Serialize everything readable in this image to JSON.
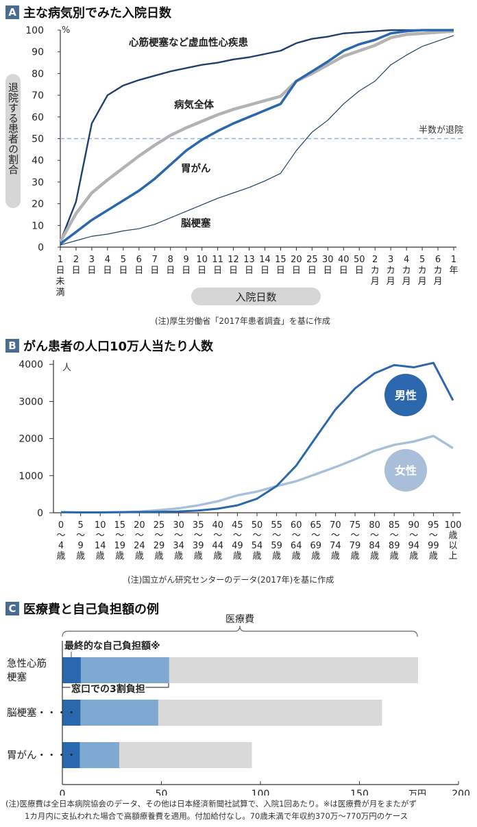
{
  "colors": {
    "badge": "#4a6b92",
    "dark_navy": "#1f3f6e",
    "blue": "#2a67ad",
    "gray_line": "#b3b3b3",
    "light_blue": "#a9bfd9",
    "dashed": "#8fb1d6",
    "self_pay": "#2a67ad",
    "copay": "#7fa9d1",
    "total": "#d9d9d9",
    "pill": "#d6d6d6"
  },
  "panel_a": {
    "badge": "A",
    "title": "主な病気別でみた入院日数",
    "unit": "%",
    "ylabel": "退院する患者の割合",
    "xlabel": "入院日数",
    "threshold_label": "半数が退院",
    "note": "(注)厚生労働省「2017年患者調査」を基に作成"
  },
  "panel_b": {
    "badge": "B",
    "title": "がん患者の人口10万人当たり人数",
    "unit": "人",
    "note": "(注)国立がん研究センターのデータ(2017年)を基に作成"
  },
  "panel_c": {
    "badge": "C",
    "title": "医療費と自己負担額の例",
    "brace_label": "医療費",
    "self_pay_label": "最終的な自己負担額※",
    "copay_label": "窓口での3割負担",
    "unit": "万円",
    "note_line1": "(注)医療費は全日本病院協会のデータ、その他は日本経済新聞社試算で、入院1回あたり。※は医療費が月をまたがず",
    "note_line2": "1カ月内に支払われた場合で高額療養費を適用。付加給付なし。70歳未満で年収約370万〜770万円のケース"
  },
  "chart_data": [
    {
      "type": "line",
      "title": "主な病気別でみた入院日数",
      "ylabel": "退院する患者の割合",
      "xlabel": "入院日数",
      "ylim": [
        0,
        100
      ],
      "yticks": [
        0,
        10,
        20,
        30,
        40,
        50,
        60,
        70,
        80,
        90,
        100
      ],
      "categories": [
        "1日未満",
        "2日",
        "3日",
        "4日",
        "5日",
        "6日",
        "7日",
        "8日",
        "9日",
        "10日",
        "11日",
        "12日",
        "13日",
        "14日",
        "15日",
        "20日",
        "25日",
        "30日",
        "40日",
        "50日",
        "2カ月",
        "3カ月",
        "4カ月",
        "5カ月",
        "6カ月",
        "1年"
      ],
      "threshold": 50,
      "series": [
        {
          "name": "心筋梗塞など虚血性心疾患",
          "values": [
            2.5,
            21,
            57,
            70,
            74.5,
            77,
            79,
            81,
            82.5,
            84,
            85,
            86.5,
            87.5,
            89,
            90.5,
            94,
            96,
            97,
            98.5,
            99,
            99.5,
            100,
            100,
            100,
            100,
            100
          ]
        },
        {
          "name": "病気全体",
          "values": [
            2.5,
            15.5,
            25,
            31,
            36.5,
            42,
            47,
            51.5,
            55,
            58,
            61,
            63.5,
            65.5,
            67.5,
            69.5,
            76.5,
            80,
            84,
            88,
            90.5,
            93,
            96.5,
            98,
            98.5,
            99,
            99.5
          ]
        },
        {
          "name": "胃がん",
          "values": [
            1.5,
            7,
            12.5,
            17,
            21.5,
            26,
            31.5,
            38,
            44.5,
            49.5,
            53.5,
            57,
            60,
            63,
            66,
            76.5,
            81,
            85.5,
            90.5,
            93.5,
            95.5,
            98.5,
            99.5,
            100,
            100,
            100
          ]
        },
        {
          "name": "脳梗塞",
          "values": [
            1,
            3,
            5,
            6,
            7.5,
            8.5,
            10.5,
            13.5,
            16.5,
            19.5,
            22.5,
            25,
            27.5,
            30.5,
            34,
            44.5,
            53,
            58.5,
            66,
            72,
            76.5,
            84,
            88.5,
            92.5,
            95,
            97.5
          ]
        }
      ],
      "series_labels": [
        "心筋梗塞など虚血性心疾患",
        "病気全体",
        "胃がん",
        "脳梗塞"
      ]
    },
    {
      "type": "line",
      "title": "がん患者の人口10万人当たり人数",
      "ylabel": "人",
      "ylim": [
        0,
        4200
      ],
      "yticks": [
        0,
        1000,
        2000,
        3000,
        4000
      ],
      "categories": [
        "0〜4歳",
        "5〜9歳",
        "10〜14歳",
        "15〜19歳",
        "20〜24歳",
        "25〜29歳",
        "30〜34歳",
        "35〜39歳",
        "40〜44歳",
        "45〜49歳",
        "50〜54歳",
        "55〜59歳",
        "60〜64歳",
        "65〜69歳",
        "70〜74歳",
        "75〜79歳",
        "80〜84歳",
        "85〜89歳",
        "90〜94歳",
        "95〜99歳",
        "100歳以上"
      ],
      "category_labels": [
        [
          "0",
          "〜",
          "4",
          "歳"
        ],
        [
          "5",
          "〜",
          "9",
          "歳"
        ],
        [
          "10",
          "〜",
          "14",
          "歳"
        ],
        [
          "15",
          "〜",
          "19",
          "歳"
        ],
        [
          "20",
          "〜",
          "24",
          "歳"
        ],
        [
          "25",
          "〜",
          "29",
          "歳"
        ],
        [
          "30",
          "〜",
          "34",
          "歳"
        ],
        [
          "35",
          "〜",
          "39",
          "歳"
        ],
        [
          "40",
          "〜",
          "44",
          "歳"
        ],
        [
          "45",
          "〜",
          "49",
          "歳"
        ],
        [
          "50",
          "〜",
          "54",
          "歳"
        ],
        [
          "55",
          "〜",
          "59",
          "歳"
        ],
        [
          "60",
          "〜",
          "64",
          "歳"
        ],
        [
          "65",
          "〜",
          "69",
          "歳"
        ],
        [
          "70",
          "〜",
          "74",
          "歳"
        ],
        [
          "75",
          "〜",
          "79",
          "歳"
        ],
        [
          "80",
          "〜",
          "84",
          "歳"
        ],
        [
          "85",
          "〜",
          "89",
          "歳"
        ],
        [
          "90",
          "〜",
          "94",
          "歳"
        ],
        [
          "95",
          "〜",
          "99",
          "歳"
        ],
        [
          "100",
          "歳",
          "以",
          "上"
        ]
      ],
      "series": [
        {
          "name": "男性",
          "values": [
            15,
            10,
            10,
            15,
            20,
            25,
            35,
            60,
            110,
            200,
            380,
            720,
            1270,
            2030,
            2780,
            3350,
            3760,
            3980,
            3920,
            4040,
            3030
          ]
        },
        {
          "name": "女性",
          "values": [
            15,
            10,
            10,
            15,
            30,
            70,
            120,
            200,
            310,
            470,
            570,
            720,
            850,
            1040,
            1230,
            1440,
            1670,
            1830,
            1920,
            2070,
            1740
          ]
        }
      ]
    },
    {
      "type": "bar",
      "orientation": "horizontal",
      "title": "医療費と自己負担額の例",
      "xlim": [
        0,
        200
      ],
      "xticks": [
        0,
        50,
        100,
        150,
        200
      ],
      "xlabel": "万円",
      "categories": [
        "急性心筋梗塞",
        "脳梗塞",
        "胃がん"
      ],
      "category_display": [
        [
          "急性心筋",
          "梗塞"
        ],
        [
          "脳梗塞・・・・"
        ],
        [
          "胃がん・・・・"
        ]
      ],
      "series": [
        {
          "name": "最終的な自己負担額※",
          "values": [
            9.3,
            9.1,
            8.8
          ]
        },
        {
          "name": "窓口での3割負担",
          "values": [
            53.9,
            48.4,
            28.7
          ]
        },
        {
          "name": "医療費",
          "values": [
            179.6,
            161.4,
            95.7
          ]
        }
      ]
    }
  ]
}
